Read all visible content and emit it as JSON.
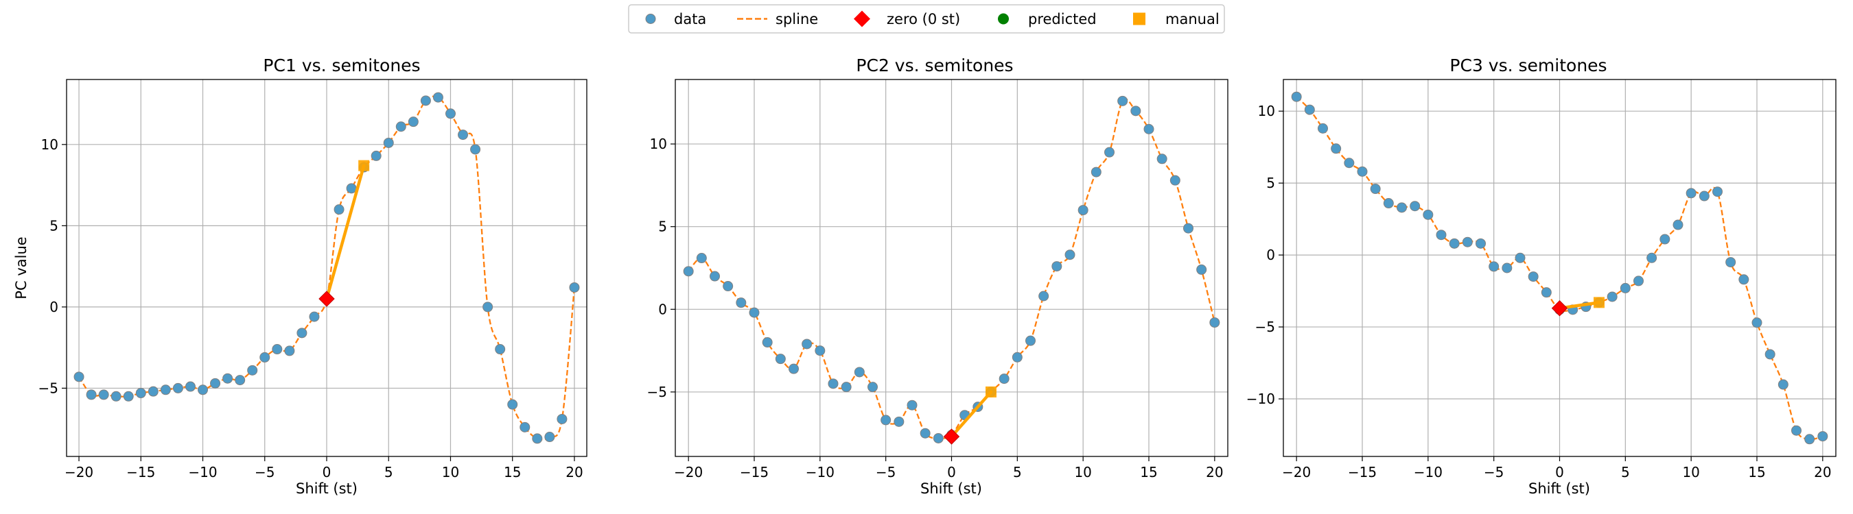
{
  "legend": {
    "placement": "top-center",
    "items": [
      {
        "label": "data",
        "marker": "circle",
        "color": "#4e9ac7"
      },
      {
        "label": "spline",
        "marker": "dashed-line",
        "color": "#ff7f0e"
      },
      {
        "label": "zero (0 st)",
        "marker": "diamond",
        "color": "#ff0000"
      },
      {
        "label": "predicted",
        "marker": "circle",
        "color": "#008000"
      },
      {
        "label": "manual",
        "marker": "square",
        "color": "#ffa500"
      }
    ]
  },
  "colors": {
    "data_face": "#4e9ac7",
    "data_edge": "#7f7f7f",
    "spline": "#ff7f0e",
    "zero": "#ff0000",
    "zero_edge": "#c00000",
    "manual": "#ffa500",
    "grid": "#b0b0b0"
  },
  "chart_data": [
    {
      "type": "line",
      "title": "PC1 vs. semitones",
      "xlabel": "Shift (st)",
      "ylabel": "PC value",
      "xlim": [
        -21,
        21
      ],
      "ylim": [
        -9.2,
        14
      ],
      "xticks": [
        -20,
        -15,
        -10,
        -5,
        0,
        5,
        10,
        15,
        20
      ],
      "xtick_labels": [
        "−20",
        "−15",
        "−10",
        "−5",
        "0",
        "5",
        "10",
        "15",
        "20"
      ],
      "yticks": [
        -5,
        0,
        5,
        10
      ],
      "ytick_labels": [
        "−5",
        "0",
        "5",
        "10"
      ],
      "grid": true,
      "x": [
        -20,
        -19,
        -18,
        -17,
        -16,
        -15,
        -14,
        -13,
        -12,
        -11,
        -10,
        -9,
        -8,
        -7,
        -6,
        -5,
        -4,
        -3,
        -2,
        -1,
        0,
        1,
        2,
        3,
        4,
        5,
        6,
        7,
        8,
        9,
        10,
        11,
        12,
        13,
        14,
        15,
        16,
        17,
        18,
        19,
        20
      ],
      "values": [
        -4.3,
        -5.4,
        -5.4,
        -5.5,
        -5.5,
        -5.3,
        -5.2,
        -5.1,
        -5.0,
        -4.9,
        -5.1,
        -4.7,
        -4.4,
        -4.5,
        -3.9,
        -3.1,
        -2.6,
        -2.7,
        -1.6,
        -0.6,
        0.5,
        6.0,
        7.3,
        8.6,
        9.3,
        10.1,
        11.1,
        11.4,
        12.7,
        12.9,
        11.9,
        10.6,
        9.7,
        0.0,
        -2.6,
        -6.0,
        -7.4,
        -8.1,
        -8.0,
        -6.9,
        1.2
      ],
      "zero": {
        "x": 0,
        "y": 0.5
      },
      "manual": {
        "x": 3,
        "y": 8.7
      }
    },
    {
      "type": "line",
      "title": "PC2 vs. semitones",
      "xlabel": "Shift (st)",
      "ylabel": "",
      "xlim": [
        -21,
        21
      ],
      "ylim": [
        -8.9,
        13.9
      ],
      "xticks": [
        -20,
        -15,
        -10,
        -5,
        0,
        5,
        10,
        15,
        20
      ],
      "xtick_labels": [
        "−20",
        "−15",
        "−10",
        "−5",
        "0",
        "5",
        "10",
        "15",
        "20"
      ],
      "yticks": [
        -5,
        0,
        5,
        10
      ],
      "ytick_labels": [
        "−5",
        "0",
        "5",
        "10"
      ],
      "grid": true,
      "x": [
        -20,
        -19,
        -18,
        -17,
        -16,
        -15,
        -14,
        -13,
        -12,
        -11,
        -10,
        -9,
        -8,
        -7,
        -6,
        -5,
        -4,
        -3,
        -2,
        -1,
        0,
        1,
        2,
        3,
        4,
        5,
        6,
        7,
        8,
        9,
        10,
        11,
        12,
        13,
        14,
        15,
        16,
        17,
        18,
        19,
        20
      ],
      "values": [
        2.3,
        3.1,
        2.0,
        1.4,
        0.4,
        -0.2,
        -2.0,
        -3.0,
        -3.6,
        -2.1,
        -2.5,
        -4.5,
        -4.7,
        -3.8,
        -4.7,
        -6.7,
        -6.8,
        -5.8,
        -7.5,
        -7.8,
        -7.6,
        -6.4,
        -5.9,
        -5.0,
        -4.2,
        -2.9,
        -1.9,
        0.8,
        2.6,
        3.3,
        6.0,
        8.3,
        9.5,
        12.6,
        12.0,
        10.9,
        9.1,
        7.8,
        4.9,
        2.4,
        -0.8
      ],
      "zero": {
        "x": 0,
        "y": -7.7
      },
      "manual": {
        "x": 3,
        "y": -5.0
      }
    },
    {
      "type": "line",
      "title": "PC3 vs. semitones",
      "xlabel": "Shift (st)",
      "ylabel": "",
      "xlim": [
        -21,
        21
      ],
      "ylim": [
        -14,
        12.2
      ],
      "xticks": [
        -20,
        -15,
        -10,
        -5,
        0,
        5,
        10,
        15,
        20
      ],
      "xtick_labels": [
        "−20",
        "−15",
        "−10",
        "−5",
        "0",
        "5",
        "10",
        "15",
        "20"
      ],
      "yticks": [
        -10,
        -5,
        0,
        5,
        10
      ],
      "ytick_labels": [
        "−10",
        "−5",
        "0",
        "5",
        "10"
      ],
      "grid": true,
      "x": [
        -20,
        -19,
        -18,
        -17,
        -16,
        -15,
        -14,
        -13,
        -12,
        -11,
        -10,
        -9,
        -8,
        -7,
        -6,
        -5,
        -4,
        -3,
        -2,
        -1,
        0,
        1,
        2,
        3,
        4,
        5,
        6,
        7,
        8,
        9,
        10,
        11,
        12,
        13,
        14,
        15,
        16,
        17,
        18,
        19,
        20
      ],
      "values": [
        11.0,
        10.1,
        8.8,
        7.4,
        6.4,
        5.8,
        4.6,
        3.6,
        3.3,
        3.4,
        2.8,
        1.4,
        0.8,
        0.9,
        0.8,
        -0.8,
        -0.9,
        -0.2,
        -1.5,
        -2.6,
        -3.8,
        -3.8,
        -3.6,
        -3.3,
        -2.9,
        -2.3,
        -1.8,
        -0.2,
        1.1,
        2.1,
        4.3,
        4.1,
        4.4,
        -0.5,
        -1.7,
        -4.7,
        -6.9,
        -9.0,
        -12.2,
        -12.8,
        -12.6
      ],
      "zero": {
        "x": 0,
        "y": -3.7
      },
      "manual": {
        "x": 3,
        "y": -3.3
      }
    }
  ]
}
